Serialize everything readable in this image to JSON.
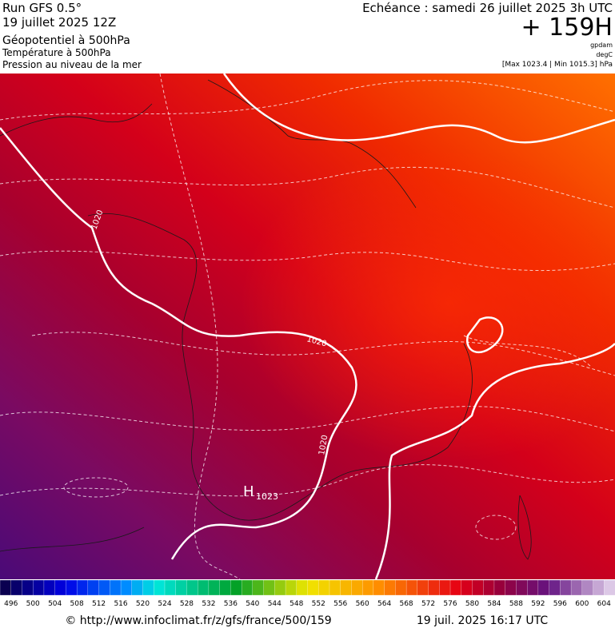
{
  "header": {
    "run": "Run GFS 0.5°",
    "run_date": "19 juillet 2025 12Z",
    "field_1": "Géopotentiel à 500hPa",
    "field_2": "Température à 500hPa",
    "field_3": "Pression au niveau de la mer",
    "valid_time": "Echéance : samedi 26 juillet 2025 3h UTC",
    "lead_time": "+ 159H",
    "unit_1": "gpdam",
    "unit_2": "degC",
    "pressure_range": "[Max 1023.4 | Min 1015.3] hPa"
  },
  "map": {
    "isobar_labels": [
      "1020",
      "1020",
      "1020"
    ],
    "high_label": "H",
    "high_value": "1023"
  },
  "colorbar": {
    "labels": [
      496,
      500,
      504,
      508,
      512,
      516,
      520,
      524,
      528,
      532,
      536,
      540,
      544,
      548,
      552,
      556,
      560,
      564,
      568,
      572,
      576,
      580,
      584,
      588,
      592,
      596,
      600,
      604
    ]
  },
  "footer": {
    "source": "© http://www.infoclimat.fr/z/gfs/france/500/159",
    "generated": "19 juil. 2025 16:17 UTC"
  }
}
